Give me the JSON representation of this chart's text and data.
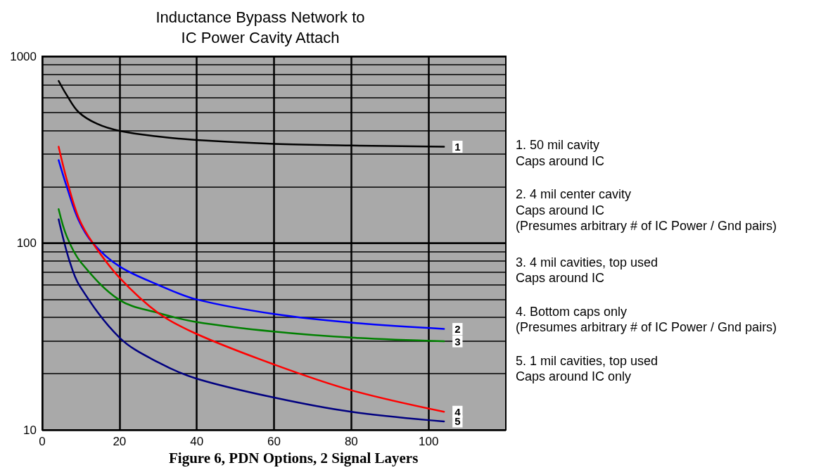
{
  "chart_data": {
    "type": "line",
    "title": "Inductance Bypass Network to\nIC Power Cavity Attach",
    "xlim": [
      0,
      120
    ],
    "xticks": [
      0,
      20,
      40,
      60,
      80,
      100
    ],
    "ylim": [
      10,
      1000
    ],
    "log": "y",
    "yticks": [
      10,
      {
        "value": 20,
        "label": null
      },
      {
        "value": 30,
        "label": null
      },
      {
        "value": 40,
        "label": null
      },
      {
        "value": 50,
        "label": null
      },
      {
        "value": 60,
        "label": null
      },
      {
        "value": 70,
        "label": null
      },
      {
        "value": 80,
        "label": null
      },
      {
        "value": 90,
        "label": null
      },
      100,
      {
        "value": 200,
        "label": null
      },
      {
        "value": 300,
        "label": null
      },
      {
        "value": 400,
        "label": null
      },
      {
        "value": 500,
        "label": null
      },
      {
        "value": 600,
        "label": null
      },
      {
        "value": 700,
        "label": null
      },
      {
        "value": 800,
        "label": null
      },
      {
        "value": 900,
        "label": null
      },
      1000
    ],
    "grid": true,
    "marker": "none",
    "line_style": "solid",
    "legend": false,
    "series": [
      {
        "name": "1",
        "color": "#000000",
        "x": [
          4.25,
          6.4,
          9.4,
          14.2,
          20,
          30,
          40,
          60,
          80,
          104
        ],
        "values": [
          738,
          617,
          503,
          435,
          399,
          372,
          356,
          340,
          333,
          328
        ]
      },
      {
        "name": "2",
        "color": "#0000ff",
        "x": [
          4.25,
          6.4,
          9.4,
          13.1,
          20,
          30,
          40,
          60,
          80,
          104
        ],
        "values": [
          278,
          199,
          133,
          100,
          75,
          59.8,
          49.9,
          41.7,
          37.5,
          34.7
        ]
      },
      {
        "name": "3",
        "color": "#008000",
        "x": [
          4.25,
          6.4,
          10,
          20,
          30,
          40,
          60,
          80,
          104
        ],
        "values": [
          152,
          108,
          79,
          49.6,
          42.3,
          37.8,
          33.6,
          31.2,
          29.8
        ]
      },
      {
        "name": "4",
        "color": "#ff0000",
        "x": [
          4.25,
          6.4,
          9.4,
          13.1,
          20,
          30,
          40,
          60,
          80,
          104
        ],
        "values": [
          328,
          217,
          137,
          100,
          65.3,
          42.3,
          32.6,
          22.4,
          16.3,
          12.5
        ]
      },
      {
        "name": "5",
        "color": "#000080",
        "x": [
          4.25,
          7,
          9.7,
          20,
          30,
          40,
          60,
          80,
          104
        ],
        "values": [
          134,
          81,
          59,
          31.2,
          23,
          18.8,
          14.9,
          12.5,
          11.1
        ]
      }
    ],
    "annotations": [
      "1. 50 mil cavity\nCaps around IC",
      "2. 4 mil center cavity\nCaps around IC\n(Presumes arbitrary # of IC Power / Gnd pairs)",
      "3. 4 mil cavities, top used\nCaps around IC",
      "4. Bottom caps only\n(Presumes arbitrary # of IC Power / Gnd pairs)",
      "5. 1 mil cavities, top used\nCaps around IC only",
      "Figure 6, PDN Options, 2 Signal Layers"
    ]
  }
}
